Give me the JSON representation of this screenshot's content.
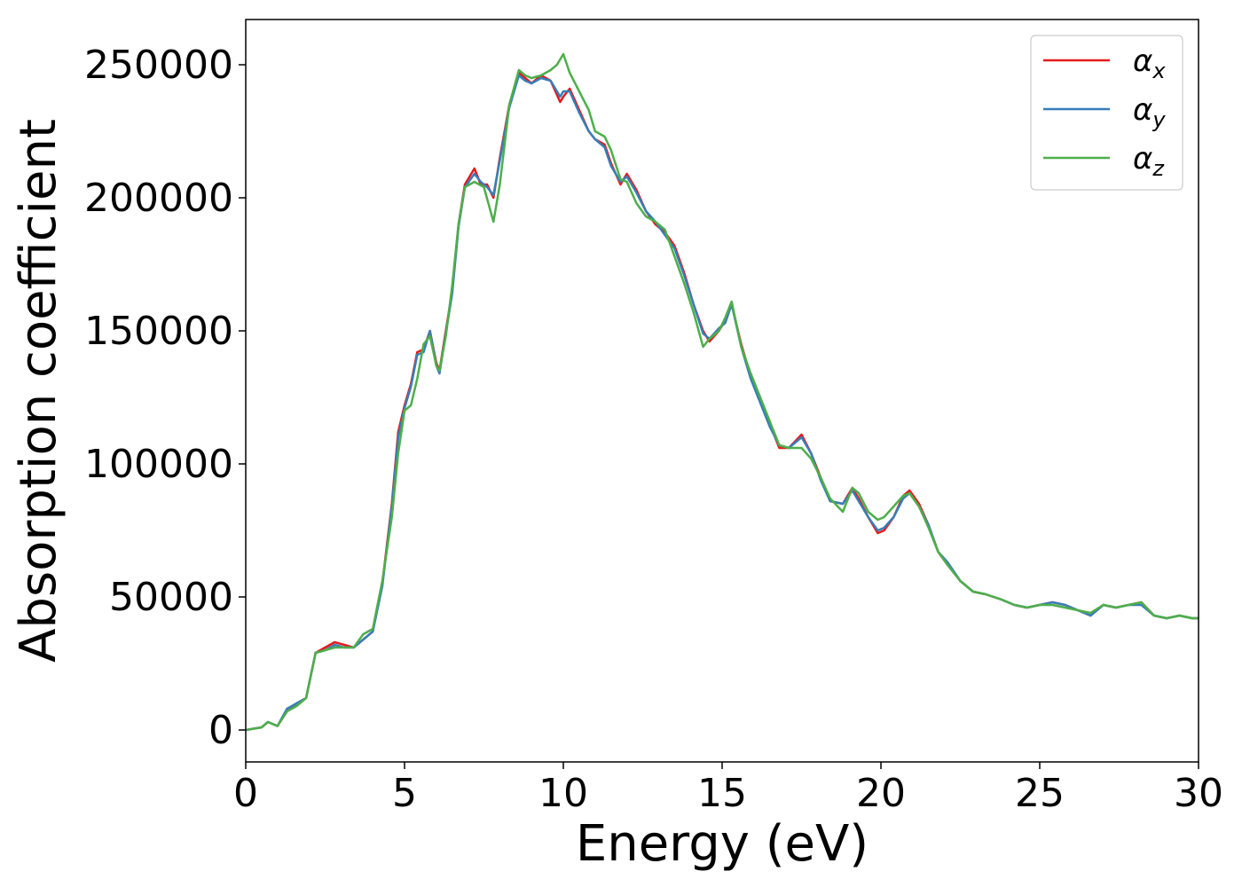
{
  "chart_data": {
    "type": "line",
    "title": "",
    "xlabel": "Energy (eV)",
    "ylabel": "Absorption coefficient",
    "xlim": [
      0,
      30
    ],
    "ylim": [
      -12000,
      267000
    ],
    "xticks": [
      0,
      5,
      10,
      15,
      20,
      25,
      30
    ],
    "yticks": [
      0,
      50000,
      100000,
      150000,
      200000,
      250000
    ],
    "grid": false,
    "legend_position": "top-right",
    "series": [
      {
        "name": "α_x",
        "label_main": "α",
        "label_sub": "x",
        "color": "#e41a1c",
        "x": [
          0,
          0.5,
          0.7,
          1.0,
          1.3,
          1.6,
          1.9,
          2.2,
          2.5,
          2.8,
          3.1,
          3.4,
          3.7,
          4.0,
          4.3,
          4.6,
          4.8,
          5.0,
          5.2,
          5.4,
          5.6,
          5.8,
          6.0,
          6.1,
          6.3,
          6.5,
          6.7,
          6.9,
          7.2,
          7.4,
          7.6,
          7.8,
          8.0,
          8.3,
          8.6,
          8.8,
          9.0,
          9.3,
          9.6,
          9.9,
          10.0,
          10.2,
          10.5,
          10.8,
          11.0,
          11.3,
          11.5,
          11.8,
          12.0,
          12.3,
          12.6,
          12.9,
          13.2,
          13.5,
          13.8,
          14.1,
          14.4,
          14.6,
          14.9,
          15.1,
          15.3,
          15.6,
          15.9,
          16.2,
          16.5,
          16.8,
          17.1,
          17.5,
          17.8,
          18.1,
          18.4,
          18.8,
          19.1,
          19.3,
          19.6,
          19.9,
          20.1,
          20.4,
          20.7,
          20.9,
          21.2,
          21.5,
          21.8,
          22.1,
          22.5,
          22.9,
          23.3,
          23.8,
          24.2,
          24.6,
          25.0,
          25.4,
          25.8,
          26.2,
          26.6,
          27.0,
          27.4,
          27.8,
          28.2,
          28.6,
          29.0,
          29.4,
          29.8,
          30.0
        ],
        "y": [
          0,
          1000,
          3000,
          1500,
          7000,
          10000,
          12000,
          29000,
          31000,
          33000,
          32000,
          31000,
          34000,
          37000,
          55000,
          85000,
          112000,
          122000,
          130000,
          142000,
          143000,
          150000,
          138000,
          135000,
          150000,
          165000,
          190000,
          205000,
          211000,
          205000,
          205000,
          200000,
          215000,
          235000,
          247000,
          245000,
          243000,
          246000,
          244000,
          236000,
          238000,
          241000,
          233000,
          225000,
          222000,
          220000,
          213000,
          205000,
          209000,
          203000,
          195000,
          190000,
          187000,
          182000,
          172000,
          160000,
          150000,
          146000,
          150000,
          154000,
          160000,
          145000,
          133000,
          124000,
          115000,
          106000,
          106000,
          111000,
          104000,
          95000,
          86000,
          85000,
          91000,
          87000,
          80000,
          74000,
          75000,
          80000,
          88000,
          90000,
          85000,
          77000,
          67000,
          62000,
          56000,
          52000,
          51000,
          49000,
          47000,
          46000,
          47000,
          48000,
          47000,
          45000,
          43000,
          47000,
          46000,
          47000,
          48000,
          43000,
          42000,
          43000,
          42000,
          42000
        ]
      },
      {
        "name": "α_y",
        "label_main": "α",
        "label_sub": "y",
        "color": "#377eb8",
        "x": [
          0,
          0.5,
          0.7,
          1.0,
          1.3,
          1.6,
          1.9,
          2.2,
          2.5,
          2.8,
          3.1,
          3.4,
          3.7,
          4.0,
          4.3,
          4.6,
          4.8,
          5.0,
          5.2,
          5.4,
          5.6,
          5.8,
          6.0,
          6.1,
          6.3,
          6.5,
          6.7,
          6.9,
          7.2,
          7.4,
          7.6,
          7.8,
          8.0,
          8.3,
          8.6,
          8.8,
          9.0,
          9.3,
          9.6,
          9.9,
          10.0,
          10.2,
          10.5,
          10.8,
          11.0,
          11.3,
          11.5,
          11.8,
          12.0,
          12.3,
          12.6,
          12.9,
          13.2,
          13.5,
          13.8,
          14.1,
          14.4,
          14.6,
          14.9,
          15.1,
          15.3,
          15.6,
          15.9,
          16.2,
          16.5,
          16.8,
          17.1,
          17.5,
          17.8,
          18.1,
          18.4,
          18.8,
          19.1,
          19.3,
          19.6,
          19.9,
          20.1,
          20.4,
          20.7,
          20.9,
          21.2,
          21.5,
          21.8,
          22.1,
          22.5,
          22.9,
          23.3,
          23.8,
          24.2,
          24.6,
          25.0,
          25.4,
          25.8,
          26.2,
          26.6,
          27.0,
          27.4,
          27.8,
          28.2,
          28.6,
          29.0,
          29.4,
          29.8,
          30.0
        ],
        "y": [
          0,
          1000,
          3000,
          1500,
          8000,
          10000,
          12000,
          29000,
          30000,
          32000,
          31000,
          31000,
          34000,
          37000,
          54000,
          84000,
          110000,
          121000,
          129000,
          141000,
          142000,
          150000,
          137000,
          134000,
          149000,
          164000,
          189000,
          204000,
          209000,
          206000,
          204000,
          201000,
          214000,
          234000,
          246000,
          244000,
          243000,
          245000,
          244000,
          238000,
          240000,
          240000,
          232000,
          225000,
          222000,
          219000,
          212000,
          206000,
          208000,
          202000,
          195000,
          191000,
          186000,
          181000,
          171000,
          160000,
          149000,
          147000,
          151000,
          153000,
          160000,
          144000,
          132000,
          123000,
          114000,
          107000,
          106000,
          110000,
          104000,
          94000,
          86000,
          85000,
          90000,
          86000,
          80000,
          75000,
          76000,
          80000,
          87000,
          89000,
          84000,
          77000,
          67000,
          63000,
          56000,
          52000,
          51000,
          49000,
          47000,
          46000,
          47000,
          48000,
          47000,
          45000,
          43000,
          47000,
          46000,
          47000,
          47000,
          43000,
          42000,
          43000,
          42000,
          42000
        ]
      },
      {
        "name": "α_z",
        "label_main": "α",
        "label_sub": "z",
        "color": "#4daf4a",
        "x": [
          0,
          0.5,
          0.7,
          1.0,
          1.3,
          1.6,
          1.9,
          2.2,
          2.5,
          2.8,
          3.1,
          3.4,
          3.7,
          4.0,
          4.3,
          4.6,
          4.8,
          5.0,
          5.2,
          5.4,
          5.6,
          5.8,
          6.0,
          6.1,
          6.3,
          6.5,
          6.7,
          6.9,
          7.2,
          7.5,
          7.8,
          8.0,
          8.3,
          8.6,
          8.8,
          9.0,
          9.3,
          9.6,
          9.8,
          10.0,
          10.2,
          10.5,
          10.8,
          11.0,
          11.3,
          11.5,
          11.8,
          12.0,
          12.3,
          12.6,
          12.9,
          13.2,
          13.5,
          13.8,
          14.1,
          14.4,
          14.6,
          14.9,
          15.1,
          15.3,
          15.6,
          15.9,
          16.2,
          16.5,
          16.8,
          17.1,
          17.5,
          17.8,
          18.1,
          18.4,
          18.8,
          19.1,
          19.3,
          19.6,
          19.9,
          20.1,
          20.4,
          20.7,
          20.9,
          21.2,
          21.5,
          21.8,
          22.1,
          22.5,
          22.9,
          23.3,
          23.8,
          24.2,
          24.6,
          25.0,
          25.4,
          25.8,
          26.2,
          26.6,
          27.0,
          27.4,
          27.8,
          28.2,
          28.6,
          29.0,
          29.4,
          29.8,
          30.0
        ],
        "y": [
          0,
          1000,
          3000,
          1500,
          7000,
          9000,
          12000,
          29000,
          30000,
          31000,
          31000,
          31000,
          36000,
          38000,
          56000,
          80000,
          104000,
          120000,
          122000,
          132000,
          145000,
          148000,
          137000,
          135000,
          148000,
          167000,
          190000,
          204000,
          206000,
          204000,
          191000,
          205000,
          235000,
          248000,
          246000,
          245000,
          246000,
          248000,
          250000,
          254000,
          247000,
          240000,
          233000,
          225000,
          223000,
          218000,
          207000,
          206000,
          198000,
          193000,
          191000,
          188000,
          178000,
          168000,
          157000,
          144000,
          147000,
          150000,
          155000,
          161000,
          144000,
          134000,
          125000,
          116000,
          107000,
          106000,
          106000,
          102000,
          95000,
          87000,
          82000,
          91000,
          89000,
          82000,
          79000,
          80000,
          84000,
          88000,
          89000,
          84000,
          76000,
          67000,
          62000,
          56000,
          52000,
          51000,
          49000,
          47000,
          46000,
          47000,
          47000,
          46000,
          45000,
          44000,
          47000,
          46000,
          47000,
          48000,
          43000,
          42000,
          43000,
          42000,
          42000
        ]
      }
    ]
  }
}
